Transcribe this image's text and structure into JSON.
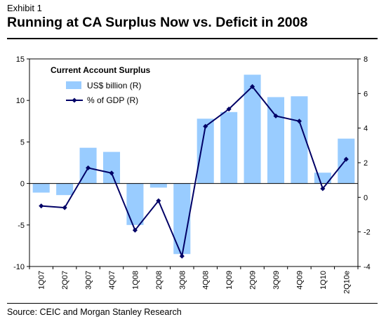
{
  "header": {
    "exhibit": "Exhibit 1",
    "title": "Running at CA Surplus Now vs. Deficit in 2008"
  },
  "footer": {
    "source": "Source: CEIC and Morgan Stanley Research"
  },
  "colors": {
    "bar": "#99ccff",
    "line": "#000066",
    "axis": "#000000"
  },
  "chart_data": {
    "type": "bar",
    "title": "Current Account Surplus",
    "categories": [
      "1Q07",
      "2Q07",
      "3Q07",
      "4Q07",
      "1Q08",
      "2Q08",
      "3Q08",
      "4Q08",
      "1Q09",
      "2Q09",
      "3Q09",
      "4Q09",
      "1Q10",
      "2Q10e"
    ],
    "series": [
      {
        "name": "US$ billion (R)",
        "type": "bar",
        "axis": "left",
        "values": [
          -1.1,
          -1.4,
          4.3,
          3.8,
          -5.0,
          -0.5,
          -8.5,
          7.8,
          8.6,
          13.1,
          10.4,
          10.5,
          1.3,
          5.4
        ]
      },
      {
        "name": "% of GDP (R)",
        "type": "line",
        "axis": "right",
        "values": [
          -0.5,
          -0.6,
          1.7,
          1.4,
          -1.9,
          -0.2,
          -3.4,
          4.1,
          5.1,
          6.4,
          4.7,
          4.4,
          0.5,
          2.2
        ]
      }
    ],
    "left_axis": {
      "ylim": [
        -10,
        15
      ],
      "ticks": [
        "-10",
        "-5",
        "0",
        "5",
        "10",
        "15"
      ]
    },
    "right_axis": {
      "ylim": [
        -4,
        8
      ],
      "ticks": [
        "-4",
        "-2",
        "0",
        "2",
        "4",
        "6",
        "8"
      ]
    },
    "legend": {
      "position": "top-left"
    },
    "grid": false
  }
}
